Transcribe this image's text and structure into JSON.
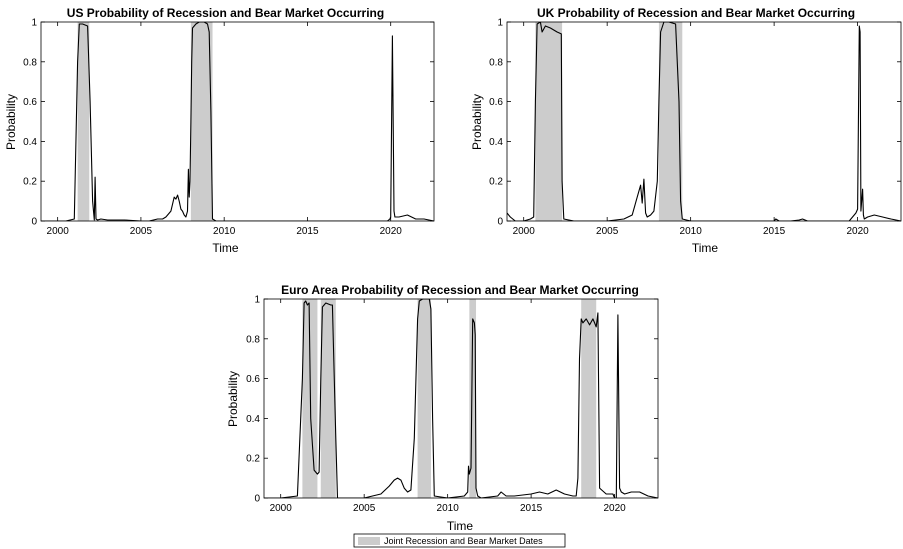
{
  "chart_data": [
    {
      "type": "line",
      "title": "US Probability of Recession and Bear Market Occurring",
      "xlabel": "Time",
      "ylabel": "Probability",
      "xlim": [
        1999,
        2022.6
      ],
      "ylim": [
        0,
        1
      ],
      "xticks": [
        2000,
        2005,
        2010,
        2015,
        2020
      ],
      "yticks": [
        0,
        0.2,
        0.4,
        0.6,
        0.8,
        1
      ],
      "shaded_periods": [
        [
          2001.2,
          2001.9
        ],
        [
          2008.0,
          2009.3
        ]
      ],
      "series": [
        {
          "x": [
            1999,
            2000.5,
            2001.0,
            2001.2,
            2001.3,
            2001.5,
            2001.8,
            2001.95,
            2002.1,
            2002.2,
            2002.25,
            2002.3,
            2002.4,
            2002.6,
            2003,
            2004,
            2005,
            2005.5,
            2006,
            2006.3,
            2006.5,
            2006.8,
            2007,
            2007.1,
            2007.2,
            2007.3,
            2007.4,
            2007.5,
            2007.6,
            2007.7,
            2007.8,
            2007.85,
            2007.9,
            2007.95,
            2008.0,
            2008.05,
            2008.1,
            2008.3,
            2008.5,
            2008.8,
            2009.0,
            2009.1,
            2009.2,
            2009.3,
            2009.5,
            2010,
            2015,
            2019.8,
            2019.95,
            2020.0,
            2020.1,
            2020.2,
            2020.25,
            2020.3,
            2020.5,
            2021,
            2021.5,
            2022,
            2022.6
          ],
          "y": [
            0.0,
            0.0,
            0.01,
            0.8,
            0.99,
            0.99,
            0.98,
            0.6,
            0.1,
            0.005,
            0.22,
            0.01,
            0.005,
            0.01,
            0.005,
            0.005,
            0.0,
            0.0,
            0.01,
            0.01,
            0.02,
            0.05,
            0.12,
            0.11,
            0.13,
            0.1,
            0.06,
            0.05,
            0.03,
            0.02,
            0.05,
            0.26,
            0.12,
            0.2,
            0.5,
            0.8,
            0.97,
            0.99,
            1.0,
            1.0,
            0.99,
            0.95,
            0.55,
            0.01,
            0.0,
            0.0,
            0.0,
            0.0,
            0.01,
            0.02,
            0.93,
            0.05,
            0.02,
            0.02,
            0.02,
            0.03,
            0.01,
            0.01,
            0.0
          ]
        }
      ]
    },
    {
      "type": "line",
      "title": "UK Probability of Recession and Bear Market Occurring",
      "xlabel": "Time",
      "ylabel": "Probability",
      "xlim": [
        1999,
        2022.6
      ],
      "ylim": [
        0,
        1
      ],
      "xticks": [
        2000,
        2005,
        2010,
        2015,
        2020
      ],
      "yticks": [
        0,
        0.2,
        0.4,
        0.6,
        0.8,
        1
      ],
      "shaded_periods": [
        [
          2000.7,
          2002.3
        ],
        [
          2008.1,
          2009.5
        ]
      ],
      "series": [
        {
          "x": [
            1999,
            1999.2,
            1999.5,
            2000,
            2000.4,
            2000.6,
            2000.7,
            2000.8,
            2001.0,
            2001.1,
            2001.3,
            2001.6,
            2002.0,
            2002.25,
            2002.3,
            2002.4,
            2003,
            2004,
            2005,
            2006,
            2006.5,
            2006.8,
            2007.0,
            2007.1,
            2007.2,
            2007.3,
            2007.4,
            2007.6,
            2007.8,
            2008.0,
            2008.1,
            2008.2,
            2008.4,
            2008.7,
            2009.1,
            2009.3,
            2009.4,
            2009.5,
            2010,
            2015,
            2015.1,
            2015.3,
            2016,
            2016.5,
            2016.7,
            2017,
            2019.5,
            2019.9,
            2020.0,
            2020.1,
            2020.15,
            2020.2,
            2020.3,
            2020.35,
            2020.4,
            2020.6,
            2021,
            2021.5,
            2022,
            2022.6
          ],
          "y": [
            0.04,
            0.02,
            0.0,
            0.0,
            0.01,
            0.02,
            0.6,
            0.99,
            1.0,
            0.95,
            0.98,
            0.97,
            0.95,
            0.94,
            0.2,
            0.01,
            0.0,
            0.0,
            0.0,
            0.01,
            0.03,
            0.12,
            0.18,
            0.09,
            0.21,
            0.04,
            0.02,
            0.03,
            0.05,
            0.2,
            0.6,
            0.95,
            1.0,
            1.0,
            0.99,
            0.6,
            0.1,
            0.01,
            0.0,
            0.0,
            0.01,
            0.0,
            0.0,
            0.005,
            0.01,
            0.0,
            0.0,
            0.04,
            0.06,
            0.98,
            0.95,
            0.05,
            0.16,
            0.03,
            0.01,
            0.02,
            0.03,
            0.02,
            0.01,
            0.0
          ]
        }
      ]
    },
    {
      "type": "line",
      "title": "Euro Area Probability of Recession and Bear Market Occurring",
      "xlabel": "Time",
      "ylabel": "Probability",
      "xlim": [
        1999,
        2022.6
      ],
      "ylim": [
        0,
        1
      ],
      "xticks": [
        2000,
        2005,
        2010,
        2015,
        2020
      ],
      "yticks": [
        0,
        0.2,
        0.4,
        0.6,
        0.8,
        1
      ],
      "shaded_periods": [
        [
          2001.3,
          2002.2
        ],
        [
          2002.4,
          2003.3
        ],
        [
          2008.2,
          2009.0
        ],
        [
          2011.3,
          2011.7
        ],
        [
          2018.0,
          2018.9
        ]
      ],
      "series": [
        {
          "x": [
            1999,
            2000,
            2001,
            2001.3,
            2001.4,
            2001.5,
            2001.6,
            2001.7,
            2001.8,
            2002.0,
            2002.2,
            2002.3,
            2002.4,
            2002.5,
            2002.7,
            2003.0,
            2003.1,
            2003.3,
            2003.4,
            2004,
            2005,
            2005.5,
            2006,
            2006.5,
            2006.8,
            2007,
            2007.2,
            2007.4,
            2007.6,
            2007.8,
            2008.0,
            2008.2,
            2008.3,
            2008.5,
            2008.9,
            2009.0,
            2009.1,
            2009.2,
            2010,
            2011.0,
            2011.2,
            2011.25,
            2011.3,
            2011.4,
            2011.5,
            2011.6,
            2011.65,
            2011.7,
            2011.8,
            2012,
            2013,
            2013.2,
            2013.5,
            2014,
            2015,
            2015.5,
            2016,
            2016.5,
            2017,
            2017.5,
            2017.7,
            2017.8,
            2017.9,
            2018.0,
            2018.1,
            2018.3,
            2018.5,
            2018.7,
            2018.8,
            2018.9,
            2019.0,
            2019.1,
            2019.5,
            2019.9,
            2020.0,
            2020.1,
            2020.2,
            2020.3,
            2020.4,
            2020.6,
            2021,
            2021.5,
            2022,
            2022.6
          ],
          "y": [
            0.0,
            0.0,
            0.01,
            0.6,
            0.98,
            0.99,
            0.97,
            0.98,
            0.4,
            0.14,
            0.12,
            0.13,
            0.6,
            0.96,
            0.98,
            0.97,
            0.97,
            0.3,
            0.0,
            0.0,
            0.0,
            0.01,
            0.02,
            0.06,
            0.09,
            0.1,
            0.09,
            0.05,
            0.03,
            0.04,
            0.3,
            0.9,
            0.99,
            1.0,
            1.0,
            0.95,
            0.4,
            0.01,
            0.0,
            0.01,
            0.03,
            0.16,
            0.12,
            0.15,
            0.9,
            0.88,
            0.82,
            0.05,
            0.01,
            0.0,
            0.01,
            0.03,
            0.01,
            0.01,
            0.02,
            0.03,
            0.02,
            0.04,
            0.02,
            0.01,
            0.01,
            0.1,
            0.7,
            0.9,
            0.88,
            0.9,
            0.87,
            0.9,
            0.88,
            0.86,
            0.93,
            0.05,
            0.02,
            0.02,
            0.0,
            0.0,
            0.92,
            0.05,
            0.03,
            0.02,
            0.03,
            0.03,
            0.01,
            0.0
          ]
        }
      ]
    }
  ],
  "legend": {
    "label": "Joint Recession and Bear Market Dates",
    "swatch_color": "#cccccc"
  },
  "colors": {
    "shading": "#cccccc",
    "line": "#000000"
  }
}
